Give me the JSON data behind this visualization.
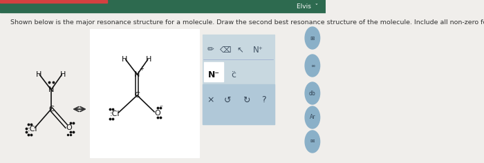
{
  "bg_color": "#e8e8e8",
  "page_bg": "#f0eeeb",
  "white_box_bg": "#ffffff",
  "toolbar_bg": "#c8d8e0",
  "toolbar_row3_bg": "#b0c8d8",
  "toolbar_border": "#8899aa",
  "top_bar_bg": "#2d6a4f",
  "top_bar_text": "Elvis",
  "question_text": "Shown below is the major resonance structure for a molecule. Draw the second best resonance structure of the molecule. Include all non-zero formal charges.",
  "question_fontsize": 6.8,
  "question_color": "#333333",
  "arrow_color": "#333333",
  "molecule_color": "#111111",
  "lone_pair_color": "#111111",
  "side_icon_color": "#8ab0c8",
  "side_icon_labels": [
    "⊞",
    "∞",
    "db",
    "Ar",
    "✉"
  ],
  "toolbar_icon_row1": [
    "✏",
    "✑",
    "↖",
    "N⁺"
  ],
  "toolbar_row2_items": [
    "N⁻",
    "č"
  ],
  "toolbar_row3_items": [
    "×",
    "↺",
    "↻",
    "?"
  ]
}
